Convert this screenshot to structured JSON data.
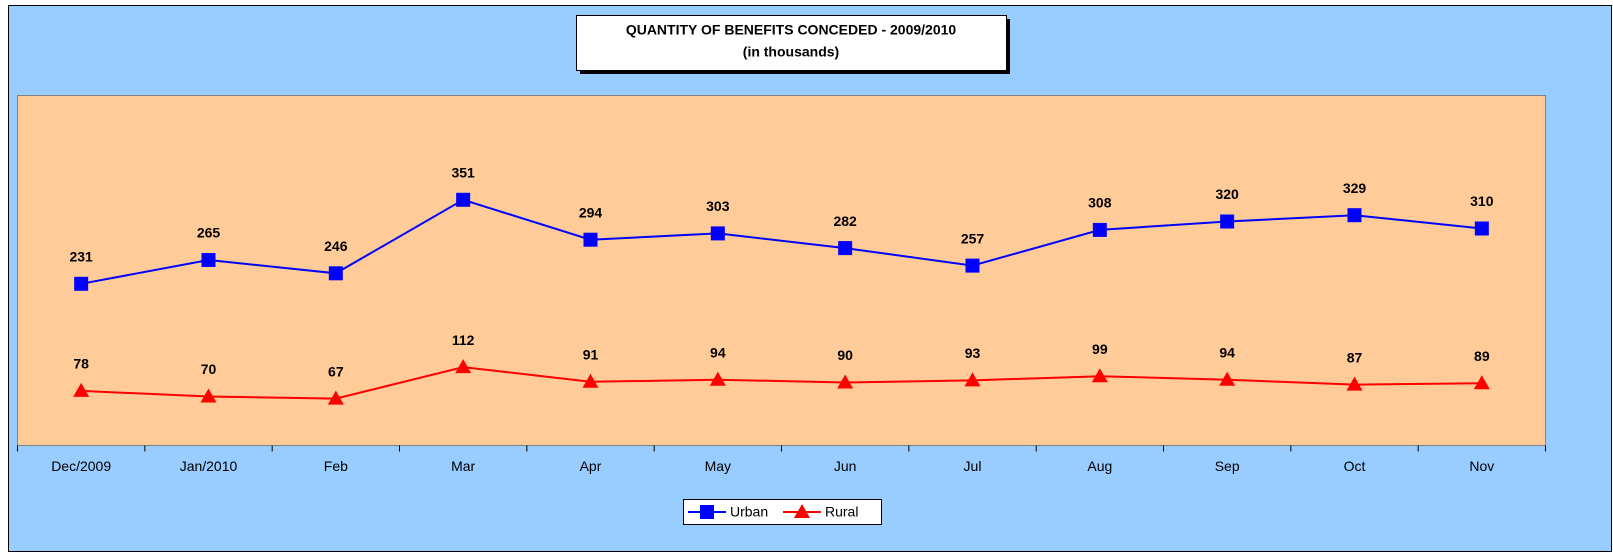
{
  "chart_data": {
    "type": "line",
    "title": "QUANTITY OF BENEFITS CONCEDED - 2009/2010",
    "subtitle": "(in thousands)",
    "categories": [
      "Dec/2009",
      "Jan/2010",
      "Feb",
      "Mar",
      "Apr",
      "May",
      "Jun",
      "Jul",
      "Aug",
      "Sep",
      "Oct",
      "Nov"
    ],
    "series": [
      {
        "name": "Urban",
        "color": "#0000ff",
        "marker": "square",
        "values": [
          231,
          265,
          246,
          351,
          294,
          303,
          282,
          257,
          308,
          320,
          329,
          310
        ]
      },
      {
        "name": "Rural",
        "color": "#ff0000",
        "marker": "triangle",
        "values": [
          78,
          70,
          67,
          112,
          91,
          94,
          90,
          93,
          99,
          94,
          87,
          89
        ]
      }
    ],
    "ylim": [
      0,
      500
    ],
    "legend": "bottom"
  }
}
